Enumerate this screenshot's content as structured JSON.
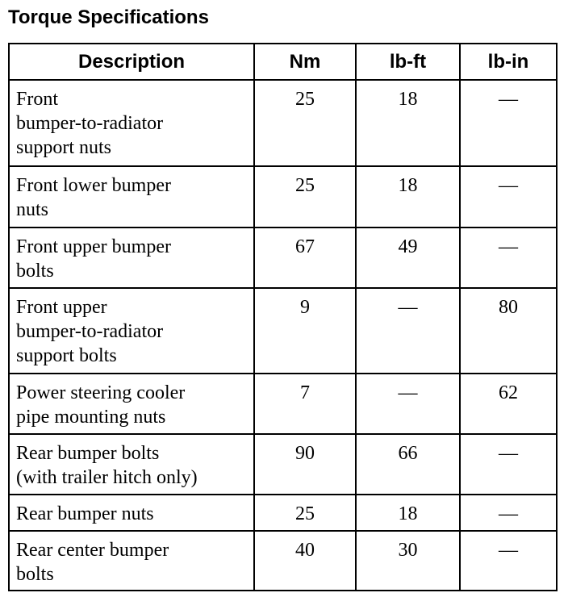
{
  "title": "Torque Specifications",
  "columns": [
    "Description",
    "Nm",
    "lb-ft",
    "lb-in"
  ],
  "rows": [
    {
      "description": [
        "Front",
        "bumper-to-radiator",
        "support nuts"
      ],
      "nm": "25",
      "lbft": "18",
      "lbin": "—"
    },
    {
      "description": [
        "Front lower bumper",
        "nuts"
      ],
      "nm": "25",
      "lbft": "18",
      "lbin": "—"
    },
    {
      "description": [
        "Front upper bumper",
        "bolts"
      ],
      "nm": "67",
      "lbft": "49",
      "lbin": "—"
    },
    {
      "description": [
        "Front upper",
        "bumper-to-radiator",
        "support bolts"
      ],
      "nm": "9",
      "lbft": "—",
      "lbin": "80"
    },
    {
      "description": [
        "Power steering cooler",
        "pipe mounting nuts"
      ],
      "nm": "7",
      "lbft": "—",
      "lbin": "62"
    },
    {
      "description": [
        "Rear bumper bolts",
        "(with trailer hitch only)"
      ],
      "nm": "90",
      "lbft": "66",
      "lbin": "—"
    },
    {
      "description": [
        "Rear bumper nuts"
      ],
      "nm": "25",
      "lbft": "18",
      "lbin": "—"
    },
    {
      "description": [
        "Rear center bumper",
        "bolts"
      ],
      "nm": "40",
      "lbft": "30",
      "lbin": "—"
    }
  ]
}
